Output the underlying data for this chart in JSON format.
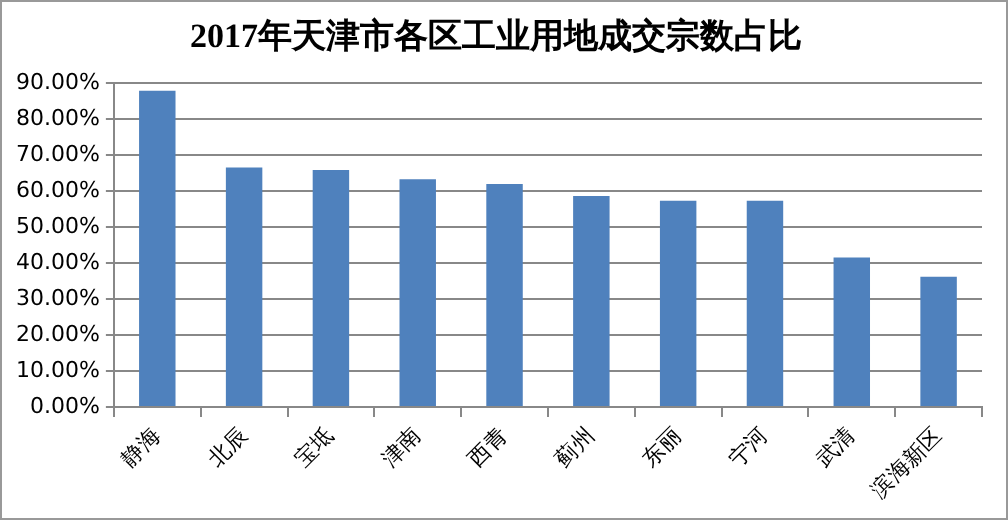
{
  "chart_data": {
    "type": "bar",
    "title": "2017年天津市各区工业用地成交宗数占比",
    "categories": [
      "静海",
      "北辰",
      "宝坻",
      "津南",
      "西青",
      "蓟州",
      "东丽",
      "宁河",
      "武清",
      "滨海新区"
    ],
    "values": [
      87.8,
      66.5,
      65.8,
      63.2,
      61.9,
      58.6,
      57.3,
      57.3,
      41.5,
      36.2
    ],
    "color": "#4f81bd",
    "ylim": [
      0,
      90
    ],
    "yticks": [
      {
        "value": 0,
        "label": "0.00%"
      },
      {
        "value": 10,
        "label": "10.00%"
      },
      {
        "value": 20,
        "label": "20.00%"
      },
      {
        "value": 30,
        "label": "30.00%"
      },
      {
        "value": 40,
        "label": "40.00%"
      },
      {
        "value": 50,
        "label": "50.00%"
      },
      {
        "value": 60,
        "label": "60.00%"
      },
      {
        "value": 70,
        "label": "70.00%"
      },
      {
        "value": 80,
        "label": "80.00%"
      },
      {
        "value": 90,
        "label": "90.00%"
      }
    ],
    "grid": "y",
    "legend": false
  }
}
